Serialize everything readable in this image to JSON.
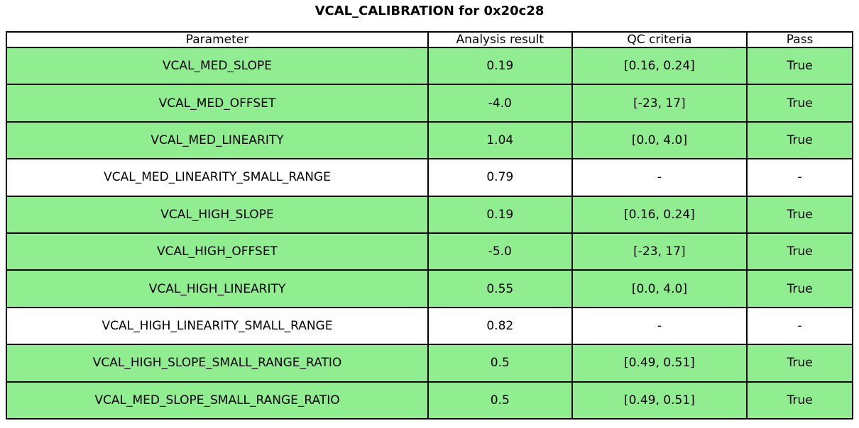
{
  "title": "VCAL_CALIBRATION for 0x20c28",
  "colors": {
    "pass_row_bg": "#90ee90",
    "default_row_bg": "#ffffff",
    "border": "#000000",
    "text": "#000000"
  },
  "chart_data": {
    "type": "table",
    "title": "VCAL_CALIBRATION for 0x20c28",
    "columns": [
      "Parameter",
      "Analysis result",
      "QC criteria",
      "Pass"
    ],
    "rows": [
      [
        "VCAL_MED_SLOPE",
        "0.19",
        "[0.16, 0.24]",
        "True"
      ],
      [
        "VCAL_MED_OFFSET",
        "-4.0",
        "[-23, 17]",
        "True"
      ],
      [
        "VCAL_MED_LINEARITY",
        "1.04",
        "[0.0, 4.0]",
        "True"
      ],
      [
        "VCAL_MED_LINEARITY_SMALL_RANGE",
        "0.79",
        "-",
        "-"
      ],
      [
        "VCAL_HIGH_SLOPE",
        "0.19",
        "[0.16, 0.24]",
        "True"
      ],
      [
        "VCAL_HIGH_OFFSET",
        "-5.0",
        "[-23, 17]",
        "True"
      ],
      [
        "VCAL_HIGH_LINEARITY",
        "0.55",
        "[0.0, 4.0]",
        "True"
      ],
      [
        "VCAL_HIGH_LINEARITY_SMALL_RANGE",
        "0.82",
        "-",
        "-"
      ],
      [
        "VCAL_HIGH_SLOPE_SMALL_RANGE_RATIO",
        "0.5",
        "[0.49, 0.51]",
        "True"
      ],
      [
        "VCAL_MED_SLOPE_SMALL_RANGE_RATIO",
        "0.5",
        "[0.49, 0.51]",
        "True"
      ]
    ],
    "row_highlight": [
      true,
      true,
      true,
      false,
      true,
      true,
      true,
      false,
      true,
      true
    ],
    "legend_position": "none",
    "grid": true
  }
}
